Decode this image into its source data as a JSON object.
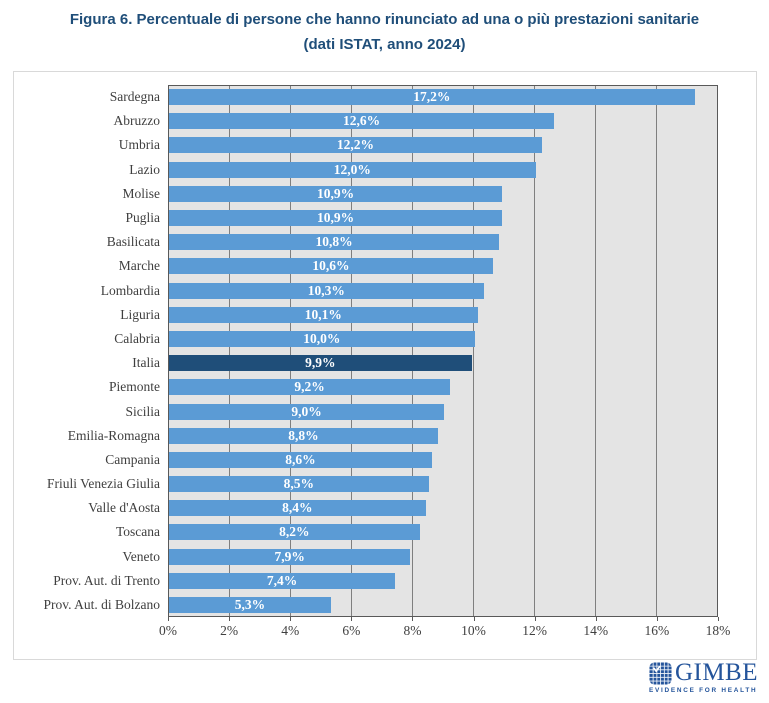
{
  "title": {
    "line1": "Figura 6. Percentuale di persone che hanno rinunciato ad una o più prestazioni sanitarie",
    "line2": "(dati ISTAT, anno 2024)"
  },
  "chart_data": {
    "type": "bar",
    "orientation": "horizontal",
    "title": "Figura 6. Percentuale di persone che hanno rinunciato ad una o più prestazioni sanitarie (dati ISTAT, anno 2024)",
    "categories": [
      "Sardegna",
      "Abruzzo",
      "Umbria",
      "Lazio",
      "Molise",
      "Puglia",
      "Basilicata",
      "Marche",
      "Lombardia",
      "Liguria",
      "Calabria",
      "Italia",
      "Piemonte",
      "Sicilia",
      "Emilia-Romagna",
      "Campania",
      "Friuli Venezia Giulia",
      "Valle d'Aosta",
      "Toscana",
      "Veneto",
      "Prov. Aut. di Trento",
      "Prov. Aut. di Bolzano"
    ],
    "values": [
      17.2,
      12.6,
      12.2,
      12.0,
      10.9,
      10.9,
      10.8,
      10.6,
      10.3,
      10.1,
      10.0,
      9.9,
      9.2,
      9.0,
      8.8,
      8.6,
      8.5,
      8.4,
      8.2,
      7.9,
      7.4,
      5.3
    ],
    "value_labels": [
      "17,2%",
      "12,6%",
      "12,2%",
      "12,0%",
      "10,9%",
      "10,9%",
      "10,8%",
      "10,6%",
      "10,3%",
      "10,1%",
      "10,0%",
      "9,9%",
      "9,2%",
      "9,0%",
      "8,8%",
      "8,6%",
      "8,5%",
      "8,4%",
      "8,2%",
      "7,9%",
      "7,4%",
      "5,3%"
    ],
    "highlight_category": "Italia",
    "highlight_index": 11,
    "xlim": [
      0,
      18
    ],
    "x_ticks": [
      "0%",
      "2%",
      "4%",
      "6%",
      "8%",
      "10%",
      "12%",
      "14%",
      "16%",
      "18%"
    ],
    "grid": true,
    "legend": "none",
    "colors": {
      "bar": "#5B9BD5",
      "highlight": "#1F4E79",
      "plot_bg": "#E4E4E4",
      "gridline": "#7F7F7F",
      "plot_border": "#595959",
      "box_border": "#D9D9D9",
      "text": "#3F3F3F",
      "title": "#1F4E79",
      "logo": "#24549B"
    }
  },
  "logo": {
    "name": "GIMBE",
    "tagline": "EVIDENCE FOR HEALTH"
  }
}
